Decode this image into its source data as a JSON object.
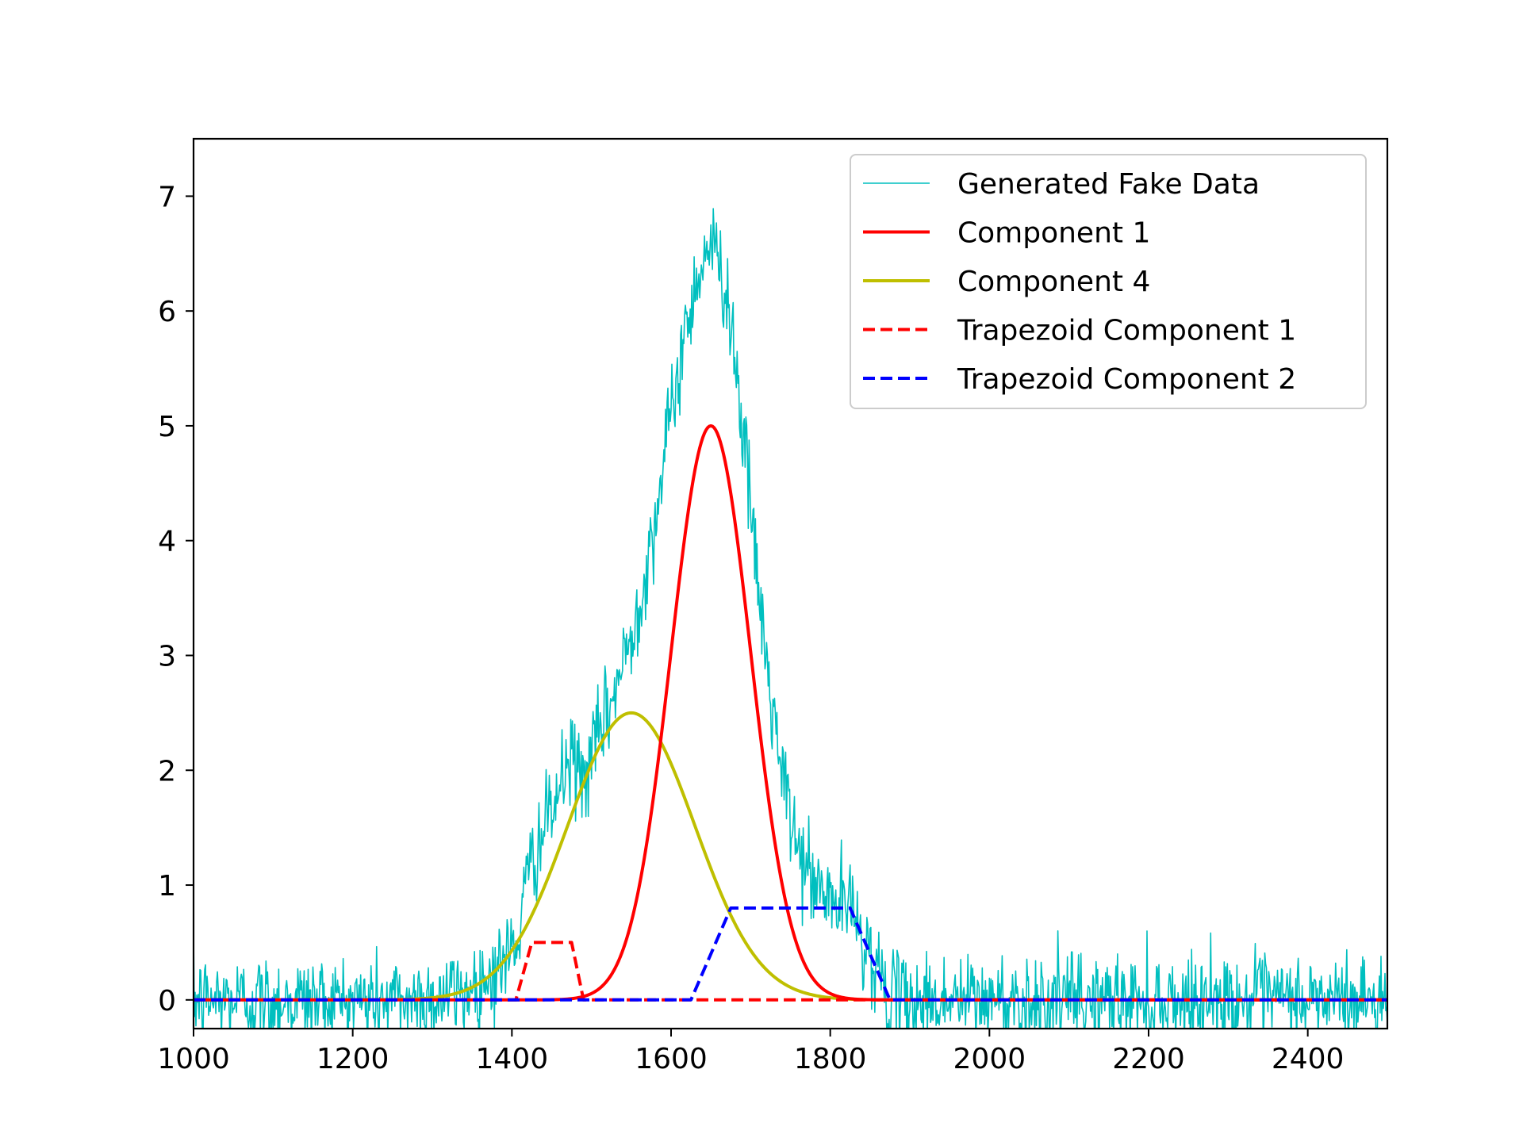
{
  "chart_data": {
    "type": "line",
    "title": "",
    "xlabel": "",
    "ylabel": "",
    "xlim": [
      1000,
      2500
    ],
    "ylim": [
      -0.25,
      7.5
    ],
    "grid": false,
    "legend_position": "upper-right",
    "x_ticks": [
      1000,
      1200,
      1400,
      1600,
      1800,
      2000,
      2200,
      2400
    ],
    "x_tick_labels": [
      "1000",
      "1200",
      "1400",
      "1600",
      "1800",
      "2000",
      "2200",
      "2400"
    ],
    "y_ticks": [
      0,
      1,
      2,
      3,
      4,
      5,
      6,
      7
    ],
    "y_tick_labels": [
      "0",
      "1",
      "2",
      "3",
      "4",
      "5",
      "6",
      "7"
    ],
    "series": [
      {
        "name": "Generated Fake Data",
        "color": "#00bfbf",
        "style": "solid",
        "approximation": "noisy sum of the components; noise standard deviation about 0.2",
        "x_range": [
          1000,
          2500
        ],
        "peak": {
          "x": 1650,
          "y": 6.8
        }
      },
      {
        "name": "Component 1",
        "color": "#ff0000",
        "style": "solid",
        "shape": "gaussian",
        "amplitude": 5.0,
        "center": 1650,
        "sigma": 50
      },
      {
        "name": "Component 4",
        "color": "#bfbf00",
        "style": "solid",
        "shape": "gaussian",
        "amplitude": 2.5,
        "center": 1550,
        "sigma": 80
      },
      {
        "name": "Trapezoid Component 1",
        "color": "#ff0000",
        "style": "dashed",
        "shape": "trapezoid",
        "points": [
          [
            1000,
            0
          ],
          [
            1405,
            0
          ],
          [
            1425,
            0.5
          ],
          [
            1475,
            0.5
          ],
          [
            1490,
            0
          ],
          [
            2500,
            0
          ]
        ]
      },
      {
        "name": "Trapezoid Component 2",
        "color": "#0000ff",
        "style": "dashed",
        "shape": "trapezoid",
        "points": [
          [
            1000,
            0
          ],
          [
            1625,
            0
          ],
          [
            1675,
            0.8
          ],
          [
            1825,
            0.8
          ],
          [
            1875,
            0
          ],
          [
            2500,
            0
          ]
        ]
      }
    ]
  }
}
